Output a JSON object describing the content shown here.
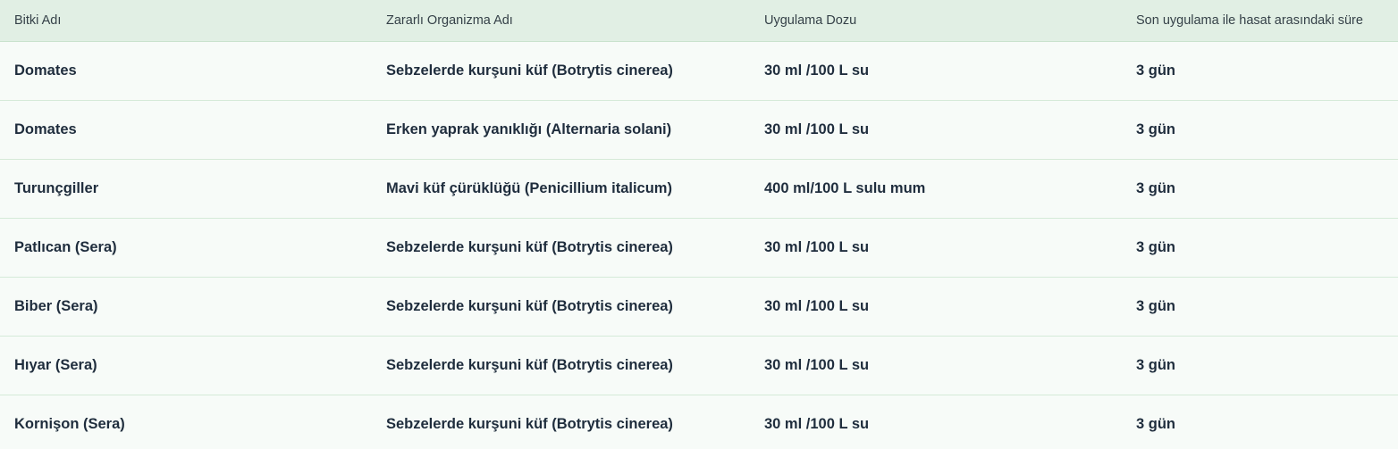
{
  "theme": {
    "header_bg": "#e1efe4",
    "header_border": "#c9e2cd",
    "header_text": "#354148",
    "row_bg": "#f7fbf8",
    "separator": "#d5ead8",
    "body_text": "#1f2d3d"
  },
  "table": {
    "columns": [
      {
        "id": "plant",
        "label": "Bitki Adı"
      },
      {
        "id": "organism",
        "label": "Zararlı Organizma Adı"
      },
      {
        "id": "dose",
        "label": "Uygulama Dozu"
      },
      {
        "id": "phi",
        "label": "Son uygulama ile hasat arasındaki süre"
      }
    ],
    "rows": [
      [
        "Domates",
        "Sebzelerde kurşuni küf (Botrytis cinerea)",
        "30 ml /100 L su",
        "3 gün"
      ],
      [
        "Domates",
        "Erken yaprak yanıklığı (Alternaria solani)",
        "30 ml /100 L su",
        "3 gün"
      ],
      [
        "Turunçgiller",
        "Mavi küf çürüklüğü (Penicillium italicum)",
        "400 ml/100 L sulu mum",
        "3 gün"
      ],
      [
        "Patlıcan (Sera)",
        "Sebzelerde kurşuni küf (Botrytis cinerea)",
        "30 ml /100 L su",
        "3 gün"
      ],
      [
        "Biber (Sera)",
        "Sebzelerde kurşuni küf (Botrytis cinerea)",
        "30 ml /100 L su",
        "3 gün"
      ],
      [
        "Hıyar (Sera)",
        "Sebzelerde kurşuni küf (Botrytis cinerea)",
        "30 ml /100 L su",
        "3 gün"
      ],
      [
        "Kornişon (Sera)",
        "Sebzelerde kurşuni küf (Botrytis cinerea)",
        "30 ml /100 L su",
        "3 gün"
      ]
    ]
  }
}
